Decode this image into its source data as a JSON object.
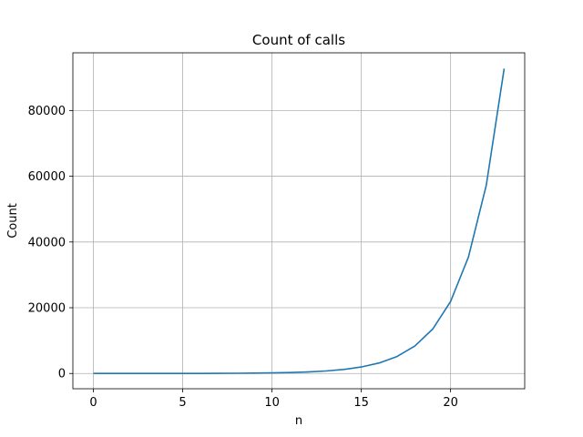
{
  "chart_data": {
    "type": "line",
    "title": "Count of calls",
    "xlabel": "n",
    "ylabel": "Count",
    "xlim": [
      -1.15,
      24.15
    ],
    "ylim": [
      -4645,
      97545
    ],
    "xticks": [
      0,
      5,
      10,
      15,
      20
    ],
    "yticks": [
      0,
      20000,
      40000,
      60000,
      80000
    ],
    "grid": true,
    "series": [
      {
        "color": "#1f77b4",
        "x": [
          0,
          1,
          2,
          3,
          4,
          5,
          6,
          7,
          8,
          9,
          10,
          11,
          12,
          13,
          14,
          15,
          16,
          17,
          18,
          19,
          20,
          21,
          22,
          23
        ],
        "y": [
          1,
          1,
          3,
          5,
          9,
          15,
          25,
          41,
          67,
          109,
          177,
          287,
          465,
          753,
          1219,
          1973,
          3193,
          5167,
          8361,
          13529,
          21891,
          35421,
          57313,
          92735
        ]
      }
    ]
  }
}
